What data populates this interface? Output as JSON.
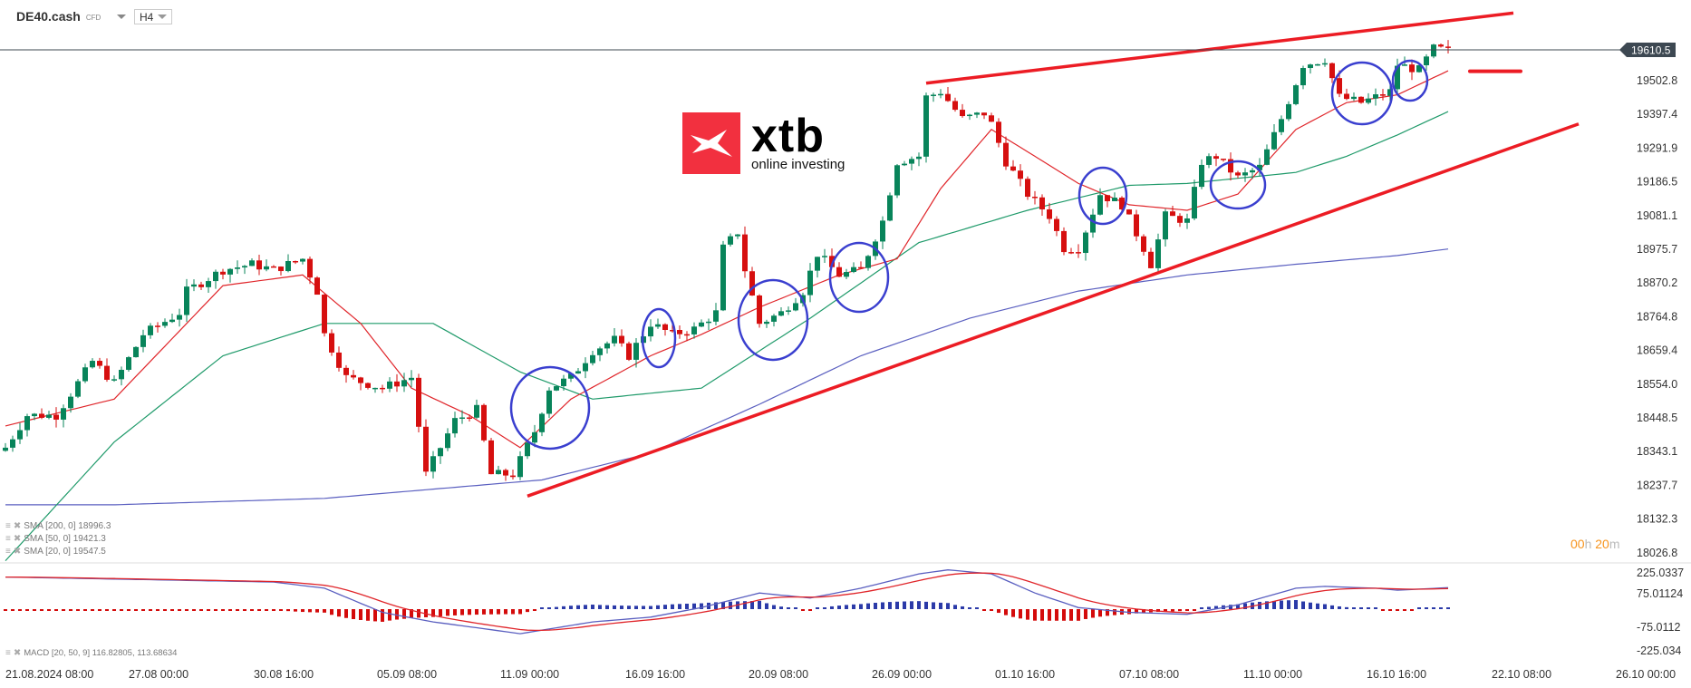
{
  "header": {
    "symbol": "DE40.cash",
    "instrument_type": "CFD",
    "timeframe": "H4",
    "timeframe_options_visible": [
      "H4"
    ]
  },
  "logo": {
    "brand": "xtb",
    "tagline": "online investing"
  },
  "current_price": "19610.5",
  "candle_timer": {
    "hours": "00",
    "h": "h",
    "minutes": "20",
    "m": "m"
  },
  "indicators": [
    {
      "icon": "≡",
      "remove": "✖",
      "label": "SMA [200, 0] 18996.3"
    },
    {
      "icon": "≡",
      "remove": "✖",
      "label": "SMA [50, 0] 19421.3"
    },
    {
      "icon": "≡",
      "remove": "✖",
      "label": "SMA [20, 0] 19547.5"
    }
  ],
  "macd_legend": {
    "icon": "≡",
    "remove": "✖",
    "label": "MACD [20, 50, 9] 116.82805,  113.68634"
  },
  "colors": {
    "up": "#08845a",
    "down": "#d60f0f",
    "sma20": "#e0252a",
    "sma50": "#1f9a6a",
    "sma200": "#5a5fc0",
    "trend": "#ec1c24",
    "circle": "#3a3fcf",
    "price_tag": "#3d4852",
    "timer": "#f7941d"
  },
  "chart_data": {
    "type": "candlestick",
    "price_axis_ticks": [
      "19502.8",
      "19397.4",
      "19291.9",
      "19186.5",
      "19081.1",
      "18975.7",
      "18870.2",
      "18764.8",
      "18659.4",
      "18554.0",
      "18448.5",
      "18343.1",
      "18237.7",
      "18132.3",
      "18026.8"
    ],
    "macd_axis_ticks": [
      "225.0337",
      "75.01124",
      "-75.0112",
      "-225.034"
    ],
    "time_axis_ticks": [
      "21.08.2024  08:00",
      "27.08  00:00",
      "30.08  16:00",
      "05.09  08:00",
      "11.09  00:00",
      "16.09  16:00",
      "20.09  08:00",
      "26.09  00:00",
      "01.10  16:00",
      "07.10  08:00",
      "11.10  00:00",
      "16.10  16:00",
      "22.10  08:00",
      "26.10  00:00"
    ],
    "price_path": [
      [
        0,
        18382
      ],
      [
        3,
        18482
      ],
      [
        7,
        18482
      ],
      [
        12,
        18649
      ],
      [
        15,
        18582
      ],
      [
        19,
        18732
      ],
      [
        24,
        18799
      ],
      [
        25,
        18866
      ],
      [
        30,
        18932
      ],
      [
        34,
        18949
      ],
      [
        37,
        18932
      ],
      [
        41,
        18966
      ],
      [
        43,
        18866
      ],
      [
        44,
        18732
      ],
      [
        47,
        18599
      ],
      [
        52,
        18566
      ],
      [
        56,
        18599
      ],
      [
        58,
        18299
      ],
      [
        62,
        18466
      ],
      [
        65,
        18499
      ],
      [
        67,
        18299
      ],
      [
        70,
        18299
      ],
      [
        73,
        18432
      ],
      [
        75,
        18566
      ],
      [
        78,
        18599
      ],
      [
        81,
        18682
      ],
      [
        84,
        18716
      ],
      [
        86,
        18666
      ],
      [
        89,
        18766
      ],
      [
        92,
        18732
      ],
      [
        95,
        18749
      ],
      [
        98,
        18799
      ],
      [
        99,
        18999
      ],
      [
        101,
        19049
      ],
      [
        102,
        18932
      ],
      [
        104,
        18766
      ],
      [
        107,
        18799
      ],
      [
        110,
        18866
      ],
      [
        112,
        18982
      ],
      [
        115,
        18916
      ],
      [
        118,
        18932
      ],
      [
        121,
        19083
      ],
      [
        123,
        19266
      ],
      [
        126,
        19283
      ],
      [
        127,
        19466
      ],
      [
        129,
        19483
      ],
      [
        132,
        19399
      ],
      [
        135,
        19416
      ],
      [
        136,
        19383
      ],
      [
        138,
        19266
      ],
      [
        141,
        19166
      ],
      [
        144,
        19099
      ],
      [
        146,
        18999
      ],
      [
        148,
        18999
      ],
      [
        151,
        19166
      ],
      [
        154,
        19133
      ],
      [
        157,
        18999
      ],
      [
        158,
        18949
      ],
      [
        160,
        19099
      ],
      [
        163,
        19083
      ],
      [
        165,
        19266
      ],
      [
        167,
        19283
      ],
      [
        170,
        19216
      ],
      [
        173,
        19249
      ],
      [
        176,
        19399
      ],
      [
        179,
        19566
      ],
      [
        182,
        19583
      ],
      [
        184,
        19466
      ],
      [
        187,
        19449
      ],
      [
        191,
        19483
      ],
      [
        192,
        19566
      ],
      [
        195,
        19550
      ],
      [
        197,
        19616
      ],
      [
        199,
        19610.5
      ]
    ],
    "sma200": [
      [
        0,
        18205
      ],
      [
        15,
        18205
      ],
      [
        44,
        18225
      ],
      [
        74,
        18282
      ],
      [
        89,
        18365
      ],
      [
        104,
        18516
      ],
      [
        118,
        18666
      ],
      [
        133,
        18782
      ],
      [
        148,
        18866
      ],
      [
        163,
        18916
      ],
      [
        178,
        18949
      ],
      [
        192,
        18976
      ],
      [
        199,
        18996.3
      ]
    ],
    "sma50": [
      [
        0,
        18032
      ],
      [
        15,
        18399
      ],
      [
        30,
        18666
      ],
      [
        44,
        18766
      ],
      [
        59,
        18766
      ],
      [
        71,
        18616
      ],
      [
        81,
        18532
      ],
      [
        96,
        18566
      ],
      [
        111,
        18782
      ],
      [
        126,
        19016
      ],
      [
        141,
        19116
      ],
      [
        155,
        19193
      ],
      [
        163,
        19199
      ],
      [
        178,
        19233
      ],
      [
        185,
        19283
      ],
      [
        192,
        19349
      ],
      [
        199,
        19421.3
      ]
    ],
    "sma20": [
      [
        0,
        18449
      ],
      [
        15,
        18532
      ],
      [
        30,
        18883
      ],
      [
        41,
        18916
      ],
      [
        49,
        18766
      ],
      [
        56,
        18566
      ],
      [
        64,
        18482
      ],
      [
        71,
        18382
      ],
      [
        78,
        18532
      ],
      [
        89,
        18666
      ],
      [
        96,
        18732
      ],
      [
        104,
        18816
      ],
      [
        115,
        18916
      ],
      [
        123,
        18966
      ],
      [
        129,
        19183
      ],
      [
        136,
        19366
      ],
      [
        142,
        19283
      ],
      [
        148,
        19199
      ],
      [
        155,
        19133
      ],
      [
        163,
        19116
      ],
      [
        170,
        19166
      ],
      [
        178,
        19366
      ],
      [
        185,
        19449
      ],
      [
        192,
        19473
      ],
      [
        199,
        19547.5
      ]
    ],
    "macd": [
      [
        0,
        170
      ],
      [
        15,
        160
      ],
      [
        37,
        145
      ],
      [
        44,
        114
      ],
      [
        52,
        -7
      ],
      [
        59,
        -55
      ],
      [
        67,
        -94
      ],
      [
        71,
        -114
      ],
      [
        81,
        -55
      ],
      [
        89,
        -31
      ],
      [
        96,
        17
      ],
      [
        104,
        90
      ],
      [
        111,
        65
      ],
      [
        118,
        114
      ],
      [
        126,
        186
      ],
      [
        130,
        206
      ],
      [
        136,
        186
      ],
      [
        142,
        90
      ],
      [
        148,
        17
      ],
      [
        155,
        -7
      ],
      [
        163,
        -17
      ],
      [
        170,
        31
      ],
      [
        178,
        114
      ],
      [
        182,
        123
      ],
      [
        189,
        114
      ],
      [
        192,
        104
      ],
      [
        199,
        116.8
      ]
    ],
    "trendlines": [
      {
        "from": [
          127,
          19509
        ],
        "to": [
          208,
          19726
        ]
      },
      {
        "from": [
          72,
          18232
        ],
        "to": [
          217,
          19383
        ]
      }
    ],
    "level_marker": {
      "from": 202,
      "to": 209,
      "price": 19546
    }
  }
}
